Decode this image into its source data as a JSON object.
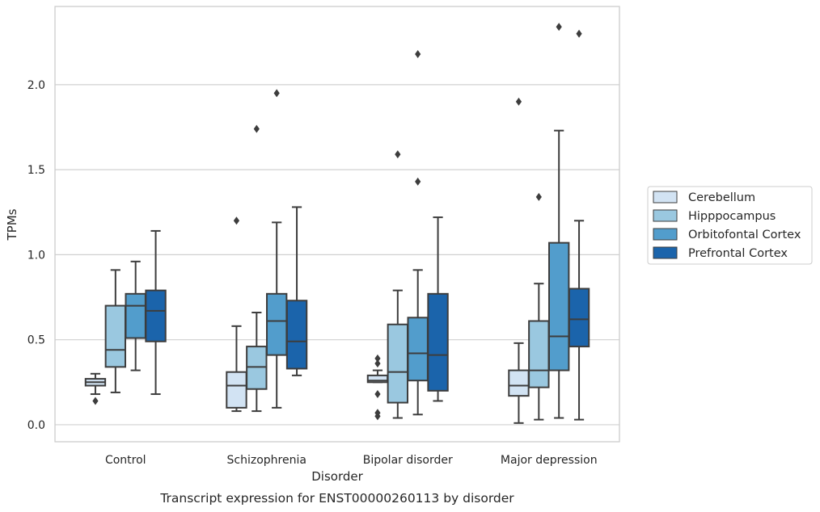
{
  "chart_data": {
    "type": "box",
    "title": "",
    "caption": "Transcript expression for ENST00000260113 by disorder",
    "xlabel": "Disorder",
    "ylabel": "TPMs",
    "ylim": [
      -0.1,
      2.46
    ],
    "yticks": [
      0.0,
      0.5,
      1.0,
      1.5,
      2.0
    ],
    "ytick_labels": [
      "0.0",
      "0.5",
      "1.0",
      "1.5",
      "2.0"
    ],
    "grid": "horizontal",
    "legend_position": "right",
    "categories": [
      "Control",
      "Schizophrenia",
      "Bipolar disorder",
      "Major depression"
    ],
    "series": [
      {
        "name": "Cerebellum",
        "color": "#d2e3f3",
        "boxes": [
          {
            "category": "Control",
            "q1": 0.23,
            "median": 0.25,
            "q3": 0.27,
            "whisker_low": 0.18,
            "whisker_high": 0.3,
            "outliers": [
              0.14
            ]
          },
          {
            "category": "Schizophrenia",
            "q1": 0.1,
            "median": 0.23,
            "q3": 0.31,
            "whisker_low": 0.08,
            "whisker_high": 0.58,
            "outliers": [
              1.2
            ]
          },
          {
            "category": "Bipolar disorder",
            "q1": 0.25,
            "median": 0.26,
            "q3": 0.29,
            "whisker_low": 0.25,
            "whisker_high": 0.32,
            "outliers": [
              0.39,
              0.36,
              0.18,
              0.07,
              0.05
            ]
          },
          {
            "category": "Major depression",
            "q1": 0.17,
            "median": 0.23,
            "q3": 0.32,
            "whisker_low": 0.01,
            "whisker_high": 0.48,
            "outliers": [
              1.9
            ]
          }
        ]
      },
      {
        "name": "Hipppocampus",
        "color": "#9ac8e0",
        "boxes": [
          {
            "category": "Control",
            "q1": 0.34,
            "median": 0.44,
            "q3": 0.7,
            "whisker_low": 0.19,
            "whisker_high": 0.91,
            "outliers": []
          },
          {
            "category": "Schizophrenia",
            "q1": 0.21,
            "median": 0.34,
            "q3": 0.46,
            "whisker_low": 0.08,
            "whisker_high": 0.66,
            "outliers": [
              1.74
            ]
          },
          {
            "category": "Bipolar disorder",
            "q1": 0.13,
            "median": 0.31,
            "q3": 0.59,
            "whisker_low": 0.04,
            "whisker_high": 0.79,
            "outliers": [
              1.59
            ]
          },
          {
            "category": "Major depression",
            "q1": 0.22,
            "median": 0.32,
            "q3": 0.61,
            "whisker_low": 0.03,
            "whisker_high": 0.83,
            "outliers": [
              1.34
            ]
          }
        ]
      },
      {
        "name": "Orbitofontal Cortex",
        "color": "#529dcc",
        "boxes": [
          {
            "category": "Control",
            "q1": 0.51,
            "median": 0.7,
            "q3": 0.77,
            "whisker_low": 0.32,
            "whisker_high": 0.96,
            "outliers": []
          },
          {
            "category": "Schizophrenia",
            "q1": 0.41,
            "median": 0.61,
            "q3": 0.77,
            "whisker_low": 0.1,
            "whisker_high": 1.19,
            "outliers": [
              1.95
            ]
          },
          {
            "category": "Bipolar disorder",
            "q1": 0.26,
            "median": 0.42,
            "q3": 0.63,
            "whisker_low": 0.06,
            "whisker_high": 0.91,
            "outliers": [
              2.18,
              1.43
            ]
          },
          {
            "category": "Major depression",
            "q1": 0.32,
            "median": 0.52,
            "q3": 1.07,
            "whisker_low": 0.04,
            "whisker_high": 1.73,
            "outliers": [
              2.34
            ]
          }
        ]
      },
      {
        "name": "Prefrontal Cortex",
        "color": "#1b64ab",
        "boxes": [
          {
            "category": "Control",
            "q1": 0.49,
            "median": 0.67,
            "q3": 0.79,
            "whisker_low": 0.18,
            "whisker_high": 1.14,
            "outliers": []
          },
          {
            "category": "Schizophrenia",
            "q1": 0.33,
            "median": 0.49,
            "q3": 0.73,
            "whisker_low": 0.29,
            "whisker_high": 1.28,
            "outliers": []
          },
          {
            "category": "Bipolar disorder",
            "q1": 0.2,
            "median": 0.41,
            "q3": 0.77,
            "whisker_low": 0.14,
            "whisker_high": 1.22,
            "outliers": []
          },
          {
            "category": "Major depression",
            "q1": 0.46,
            "median": 0.62,
            "q3": 0.8,
            "whisker_low": 0.03,
            "whisker_high": 1.2,
            "outliers": [
              2.3
            ]
          }
        ]
      }
    ]
  }
}
